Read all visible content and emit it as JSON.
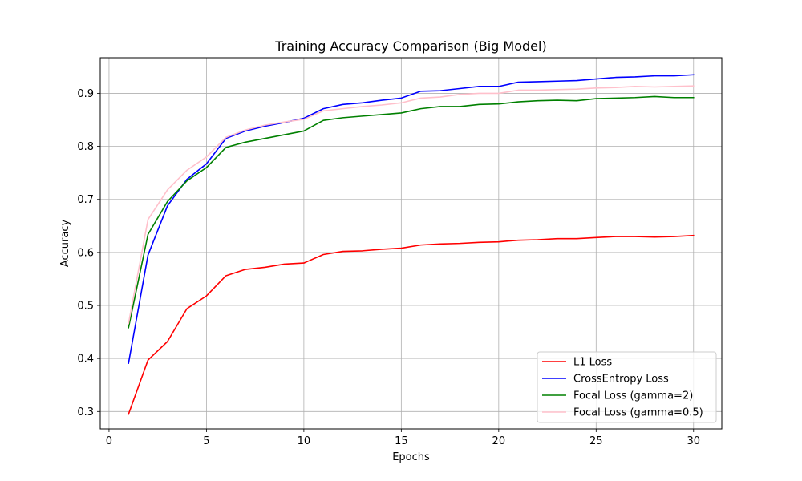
{
  "chart_data": {
    "type": "line",
    "title": "Training Accuracy Comparison (Big Model)",
    "xlabel": "Epochs",
    "ylabel": "Accuracy",
    "xlim": [
      -0.45,
      31.45
    ],
    "ylim": [
      0.2672,
      0.9672
    ],
    "xticks": [
      0,
      5,
      10,
      15,
      20,
      25,
      30
    ],
    "yticks": [
      0.3,
      0.4,
      0.5,
      0.6,
      0.7,
      0.8,
      0.9
    ],
    "ytick_labels": [
      "0.3",
      "0.4",
      "0.5",
      "0.6",
      "0.7",
      "0.8",
      "0.9"
    ],
    "grid": true,
    "legend_position": "lower-right",
    "x": [
      1,
      2,
      3,
      4,
      5,
      6,
      7,
      8,
      9,
      10,
      11,
      12,
      13,
      14,
      15,
      16,
      17,
      18,
      19,
      20,
      21,
      22,
      23,
      24,
      25,
      26,
      27,
      28,
      29,
      30
    ],
    "series": [
      {
        "name": "L1 Loss",
        "color": "#ff0000",
        "values": [
          0.295,
          0.397,
          0.432,
          0.494,
          0.518,
          0.556,
          0.568,
          0.572,
          0.578,
          0.58,
          0.596,
          0.602,
          0.603,
          0.606,
          0.608,
          0.614,
          0.616,
          0.617,
          0.619,
          0.62,
          0.623,
          0.624,
          0.626,
          0.626,
          0.628,
          0.63,
          0.63,
          0.629,
          0.63,
          0.632
        ]
      },
      {
        "name": "CrossEntropy Loss",
        "color": "#0000ff",
        "values": [
          0.391,
          0.595,
          0.688,
          0.738,
          0.767,
          0.815,
          0.829,
          0.838,
          0.845,
          0.853,
          0.871,
          0.879,
          0.882,
          0.887,
          0.891,
          0.904,
          0.905,
          0.909,
          0.913,
          0.913,
          0.921,
          0.922,
          0.923,
          0.924,
          0.927,
          0.93,
          0.931,
          0.933,
          0.933,
          0.935
        ]
      },
      {
        "name": "Focal Loss (gamma=2)",
        "color": "#008000",
        "values": [
          0.458,
          0.634,
          0.696,
          0.735,
          0.76,
          0.798,
          0.808,
          0.815,
          0.822,
          0.829,
          0.849,
          0.854,
          0.857,
          0.86,
          0.863,
          0.871,
          0.875,
          0.875,
          0.879,
          0.88,
          0.884,
          0.886,
          0.887,
          0.886,
          0.89,
          0.891,
          0.892,
          0.894,
          0.892,
          0.892
        ]
      },
      {
        "name": "Focal Loss (gamma=0.5)",
        "color": "#ffc0cb",
        "values": [
          0.466,
          0.662,
          0.718,
          0.755,
          0.78,
          0.817,
          0.831,
          0.84,
          0.846,
          0.851,
          0.867,
          0.871,
          0.875,
          0.878,
          0.882,
          0.891,
          0.893,
          0.898,
          0.9,
          0.9,
          0.906,
          0.906,
          0.907,
          0.908,
          0.91,
          0.911,
          0.913,
          0.912,
          0.913,
          0.914
        ]
      }
    ]
  }
}
